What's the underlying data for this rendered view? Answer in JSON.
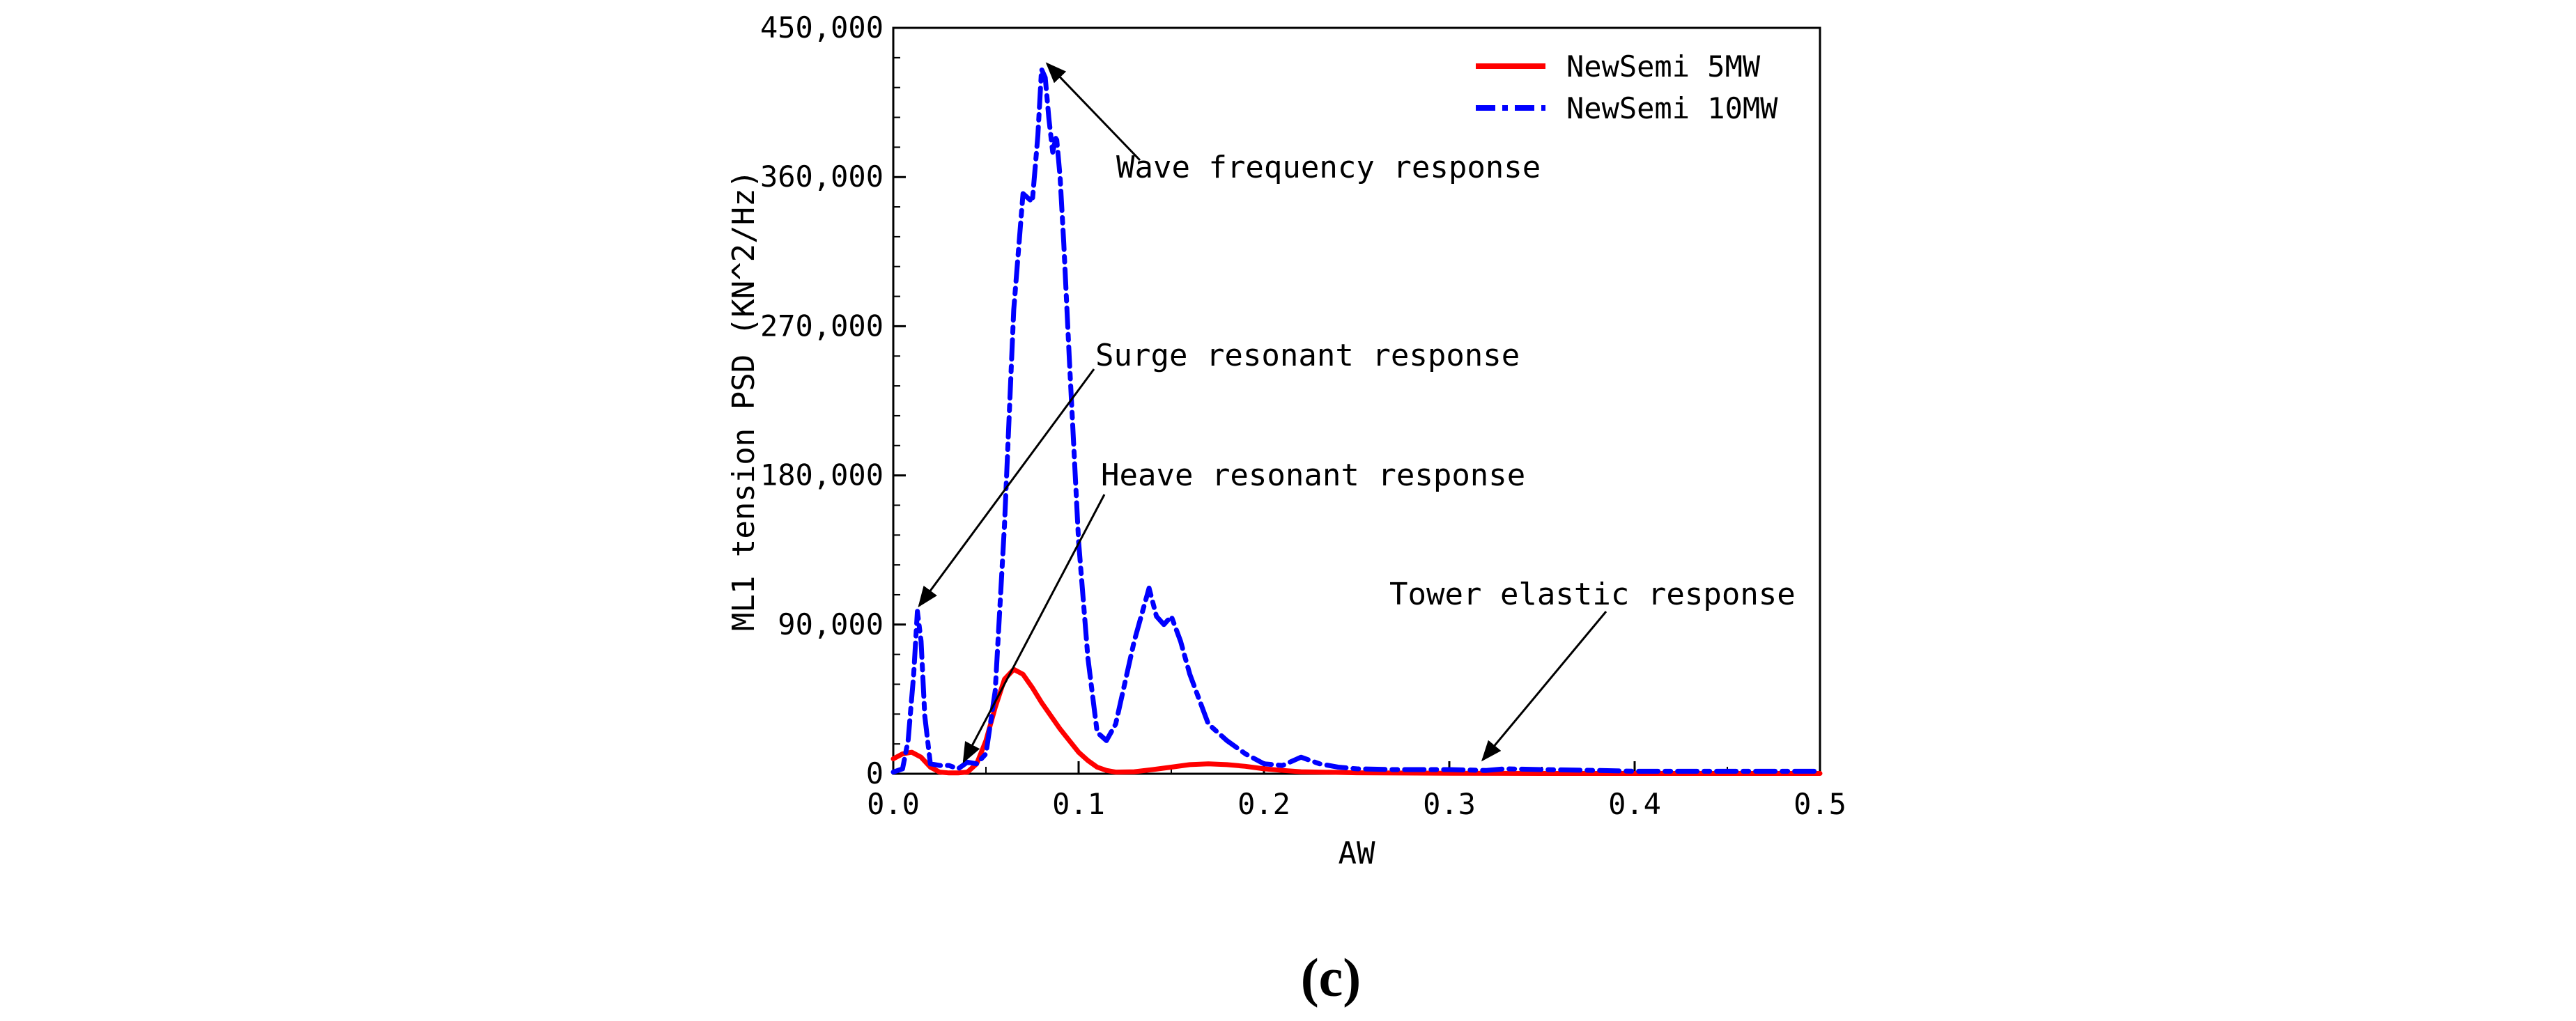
{
  "chart_data": {
    "type": "line",
    "title": "",
    "xlabel": "AW",
    "ylabel": "ML1 tension PSD (KN^2/Hz)",
    "xlim": [
      0,
      0.5
    ],
    "ylim": [
      0,
      450000
    ],
    "x_ticks": [
      0,
      0.1,
      0.2,
      0.3,
      0.4,
      0.5
    ],
    "x_tick_labels": [
      "0.0",
      "0.1",
      "0.2",
      "0.3",
      "0.4",
      "0.5"
    ],
    "y_ticks": [
      0,
      90000,
      180000,
      270000,
      360000,
      450000
    ],
    "y_tick_labels": [
      "0",
      "90,000",
      "180,000",
      "270,000",
      "360,000",
      "450,000"
    ],
    "grid": false,
    "legend_position": "top-right",
    "series": [
      {
        "name": "NewSemi 5MW",
        "color": "#ff0000",
        "style": "solid",
        "x": [
          0,
          0.005,
          0.01,
          0.015,
          0.02,
          0.025,
          0.03,
          0.035,
          0.04,
          0.045,
          0.05,
          0.055,
          0.06,
          0.065,
          0.07,
          0.075,
          0.08,
          0.085,
          0.09,
          0.095,
          0.1,
          0.105,
          0.11,
          0.115,
          0.12,
          0.13,
          0.14,
          0.15,
          0.16,
          0.17,
          0.18,
          0.19,
          0.2,
          0.21,
          0.22,
          0.25,
          0.3,
          0.35,
          0.4,
          0.45,
          0.5
        ],
        "y": [
          9000,
          12000,
          13000,
          10000,
          4000,
          1000,
          500,
          500,
          1000,
          6000,
          20000,
          40000,
          57000,
          63000,
          60000,
          52000,
          43000,
          35000,
          27000,
          20000,
          13000,
          8000,
          4000,
          2000,
          1000,
          1200,
          2500,
          4000,
          5500,
          6000,
          5500,
          4500,
          3000,
          2000,
          1200,
          600,
          300,
          200,
          200,
          200,
          200
        ]
      },
      {
        "name": "NewSemi 10MW",
        "color": "#0000ff",
        "style": "dashdot",
        "x": [
          0,
          0.005,
          0.008,
          0.011,
          0.013,
          0.015,
          0.017,
          0.02,
          0.025,
          0.03,
          0.035,
          0.04,
          0.045,
          0.05,
          0.055,
          0.06,
          0.065,
          0.07,
          0.075,
          0.078,
          0.08,
          0.082,
          0.084,
          0.086,
          0.088,
          0.09,
          0.092,
          0.095,
          0.1,
          0.105,
          0.11,
          0.115,
          0.12,
          0.125,
          0.13,
          0.135,
          0.138,
          0.142,
          0.146,
          0.15,
          0.155,
          0.16,
          0.165,
          0.17,
          0.18,
          0.19,
          0.2,
          0.21,
          0.22,
          0.23,
          0.24,
          0.25,
          0.27,
          0.3,
          0.32,
          0.33,
          0.35,
          0.38,
          0.4,
          0.45,
          0.5
        ],
        "y": [
          1000,
          3000,
          20000,
          60000,
          98000,
          80000,
          35000,
          6000,
          5000,
          5000,
          3000,
          7000,
          6000,
          12000,
          50000,
          150000,
          280000,
          350000,
          345000,
          385000,
          425000,
          420000,
          395000,
          375000,
          385000,
          360000,
          320000,
          250000,
          140000,
          70000,
          25000,
          20000,
          30000,
          55000,
          80000,
          100000,
          112000,
          95000,
          90000,
          95000,
          80000,
          60000,
          45000,
          30000,
          20000,
          12000,
          6000,
          5000,
          10000,
          6000,
          4000,
          3000,
          2500,
          2500,
          2000,
          3000,
          2500,
          2000,
          1500,
          1500,
          1500
        ]
      }
    ],
    "annotations": [
      {
        "text": "Wave frequency response",
        "x": 0.083,
        "y": 425000
      },
      {
        "text": "Surge resonant response",
        "x": 0.014,
        "y": 98000
      },
      {
        "text": "Heave resonant response",
        "x": 0.038,
        "y": 4000
      },
      {
        "text": "Tower elastic response",
        "x": 0.318,
        "y": 5000
      }
    ]
  },
  "caption": "(c)"
}
